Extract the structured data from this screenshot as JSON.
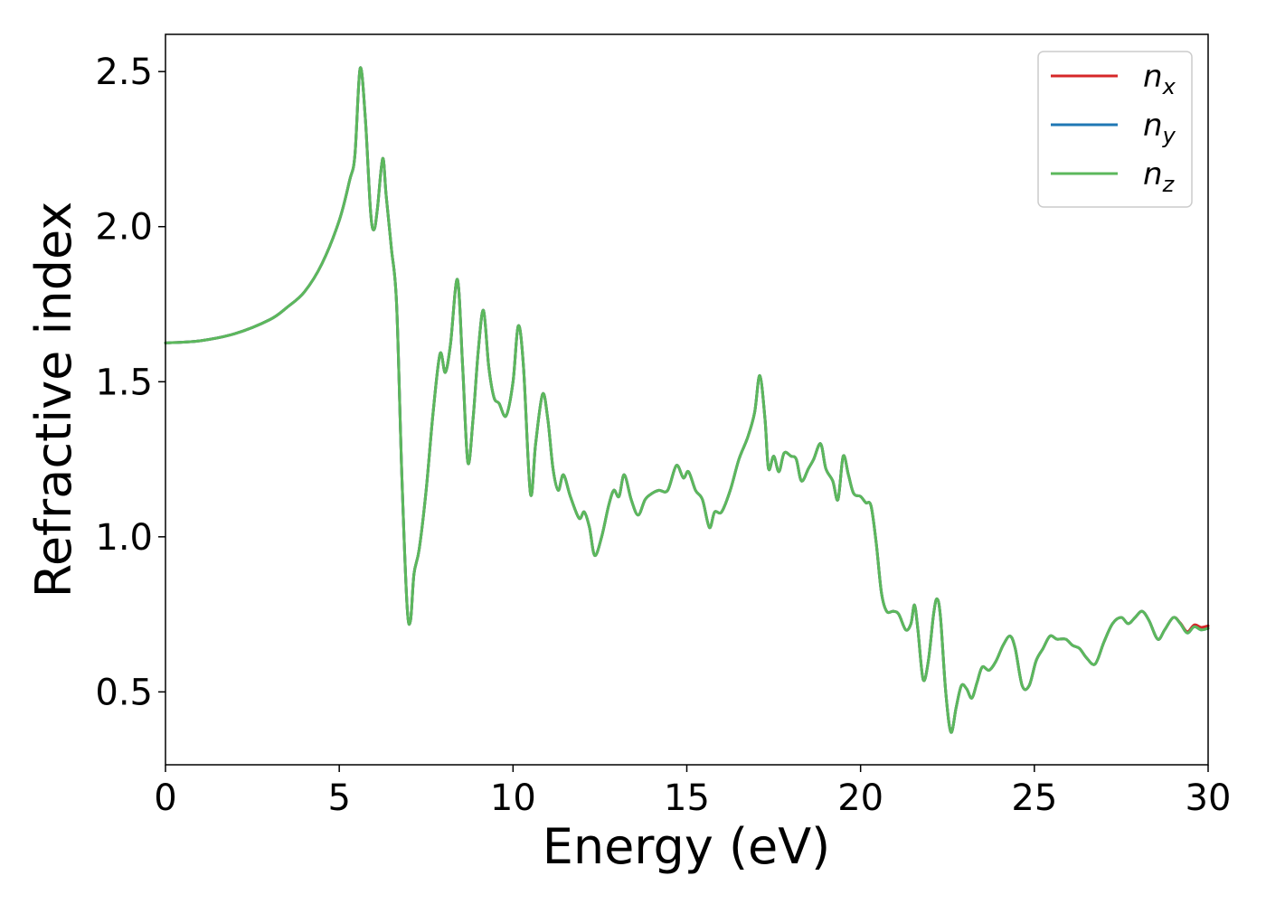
{
  "chart_data": {
    "type": "line",
    "title": "",
    "xlabel": "Energy (eV)",
    "ylabel": "Refractive index",
    "xlim": [
      0,
      30
    ],
    "ylim": [
      0.265,
      2.62
    ],
    "xticks": [
      "0",
      "5",
      "10",
      "15",
      "20",
      "25",
      "30"
    ],
    "xtick_values": [
      0,
      5,
      10,
      15,
      20,
      25,
      30
    ],
    "yticks": [
      "0.5",
      "1.0",
      "1.5",
      "2.0",
      "2.5"
    ],
    "ytick_values": [
      0.5,
      1.0,
      1.5,
      2.0,
      2.5
    ],
    "grid": false,
    "legend_position": "top-right",
    "points": [
      [
        0,
        1.625
      ],
      [
        1,
        1.632
      ],
      [
        2,
        1.655
      ],
      [
        3,
        1.7
      ],
      [
        3.5,
        1.74
      ],
      [
        4,
        1.79
      ],
      [
        4.5,
        1.88
      ],
      [
        5,
        2.02
      ],
      [
        5.3,
        2.15
      ],
      [
        5.45,
        2.23
      ],
      [
        5.6,
        2.51
      ],
      [
        5.75,
        2.35
      ],
      [
        5.9,
        2.05
      ],
      [
        6.0,
        1.99
      ],
      [
        6.1,
        2.06
      ],
      [
        6.25,
        2.22
      ],
      [
        6.35,
        2.1
      ],
      [
        6.5,
        1.93
      ],
      [
        6.65,
        1.75
      ],
      [
        6.8,
        1.2
      ],
      [
        6.95,
        0.78
      ],
      [
        7.05,
        0.73
      ],
      [
        7.15,
        0.88
      ],
      [
        7.3,
        0.96
      ],
      [
        7.5,
        1.15
      ],
      [
        7.7,
        1.4
      ],
      [
        7.9,
        1.59
      ],
      [
        8.05,
        1.53
      ],
      [
        8.2,
        1.62
      ],
      [
        8.4,
        1.83
      ],
      [
        8.55,
        1.55
      ],
      [
        8.7,
        1.24
      ],
      [
        8.85,
        1.38
      ],
      [
        9.0,
        1.6
      ],
      [
        9.15,
        1.73
      ],
      [
        9.3,
        1.55
      ],
      [
        9.45,
        1.45
      ],
      [
        9.6,
        1.43
      ],
      [
        9.8,
        1.39
      ],
      [
        10.0,
        1.5
      ],
      [
        10.15,
        1.68
      ],
      [
        10.3,
        1.55
      ],
      [
        10.5,
        1.14
      ],
      [
        10.65,
        1.3
      ],
      [
        10.85,
        1.46
      ],
      [
        11.0,
        1.38
      ],
      [
        11.15,
        1.22
      ],
      [
        11.3,
        1.15
      ],
      [
        11.45,
        1.2
      ],
      [
        11.65,
        1.13
      ],
      [
        11.9,
        1.06
      ],
      [
        12.05,
        1.08
      ],
      [
        12.2,
        1.03
      ],
      [
        12.35,
        0.94
      ],
      [
        12.55,
        1.0
      ],
      [
        12.75,
        1.1
      ],
      [
        12.9,
        1.15
      ],
      [
        13.05,
        1.13
      ],
      [
        13.2,
        1.2
      ],
      [
        13.4,
        1.12
      ],
      [
        13.6,
        1.07
      ],
      [
        13.8,
        1.12
      ],
      [
        14.0,
        1.14
      ],
      [
        14.2,
        1.15
      ],
      [
        14.45,
        1.15
      ],
      [
        14.7,
        1.23
      ],
      [
        14.9,
        1.19
      ],
      [
        15.05,
        1.21
      ],
      [
        15.25,
        1.15
      ],
      [
        15.45,
        1.12
      ],
      [
        15.65,
        1.03
      ],
      [
        15.8,
        1.08
      ],
      [
        16.0,
        1.08
      ],
      [
        16.25,
        1.15
      ],
      [
        16.5,
        1.25
      ],
      [
        16.75,
        1.32
      ],
      [
        16.95,
        1.4
      ],
      [
        17.1,
        1.52
      ],
      [
        17.25,
        1.38
      ],
      [
        17.35,
        1.22
      ],
      [
        17.5,
        1.26
      ],
      [
        17.65,
        1.21
      ],
      [
        17.8,
        1.27
      ],
      [
        18.0,
        1.26
      ],
      [
        18.15,
        1.25
      ],
      [
        18.3,
        1.18
      ],
      [
        18.5,
        1.22
      ],
      [
        18.65,
        1.25
      ],
      [
        18.85,
        1.3
      ],
      [
        19.0,
        1.22
      ],
      [
        19.2,
        1.18
      ],
      [
        19.35,
        1.12
      ],
      [
        19.5,
        1.26
      ],
      [
        19.65,
        1.2
      ],
      [
        19.8,
        1.14
      ],
      [
        20.0,
        1.13
      ],
      [
        20.15,
        1.11
      ],
      [
        20.3,
        1.1
      ],
      [
        20.45,
        0.98
      ],
      [
        20.6,
        0.82
      ],
      [
        20.75,
        0.76
      ],
      [
        20.95,
        0.76
      ],
      [
        21.1,
        0.75
      ],
      [
        21.3,
        0.7
      ],
      [
        21.45,
        0.72
      ],
      [
        21.55,
        0.78
      ],
      [
        21.65,
        0.7
      ],
      [
        21.8,
        0.54
      ],
      [
        21.95,
        0.6
      ],
      [
        22.1,
        0.75
      ],
      [
        22.2,
        0.8
      ],
      [
        22.3,
        0.74
      ],
      [
        22.45,
        0.5
      ],
      [
        22.6,
        0.37
      ],
      [
        22.75,
        0.45
      ],
      [
        22.9,
        0.52
      ],
      [
        23.05,
        0.51
      ],
      [
        23.2,
        0.48
      ],
      [
        23.35,
        0.53
      ],
      [
        23.5,
        0.58
      ],
      [
        23.7,
        0.57
      ],
      [
        23.9,
        0.6
      ],
      [
        24.1,
        0.65
      ],
      [
        24.3,
        0.68
      ],
      [
        24.45,
        0.64
      ],
      [
        24.65,
        0.52
      ],
      [
        24.85,
        0.52
      ],
      [
        25.05,
        0.6
      ],
      [
        25.25,
        0.64
      ],
      [
        25.45,
        0.68
      ],
      [
        25.65,
        0.67
      ],
      [
        25.9,
        0.67
      ],
      [
        26.1,
        0.65
      ],
      [
        26.3,
        0.64
      ],
      [
        26.5,
        0.61
      ],
      [
        26.75,
        0.59
      ],
      [
        27.0,
        0.66
      ],
      [
        27.25,
        0.72
      ],
      [
        27.5,
        0.74
      ],
      [
        27.7,
        0.72
      ],
      [
        27.9,
        0.74
      ],
      [
        28.1,
        0.76
      ],
      [
        28.3,
        0.73
      ],
      [
        28.55,
        0.67
      ],
      [
        28.75,
        0.7
      ],
      [
        29.0,
        0.74
      ],
      [
        29.2,
        0.72
      ],
      [
        29.4,
        0.69
      ],
      [
        29.6,
        0.71
      ],
      [
        29.8,
        0.7
      ],
      [
        30.0,
        0.705
      ]
    ],
    "series": [
      {
        "name": "n_x",
        "label_main": "n",
        "label_sub": "x",
        "color": "#d62728",
        "delta": [
          [
            29.0,
            0.0
          ],
          [
            29.8,
            0.008
          ]
        ]
      },
      {
        "name": "n_y",
        "label_main": "n",
        "label_sub": "y",
        "color": "#1f77b4",
        "delta": []
      },
      {
        "name": "n_z",
        "label_main": "n",
        "label_sub": "z",
        "color": "#5cb85c",
        "delta": []
      }
    ]
  }
}
